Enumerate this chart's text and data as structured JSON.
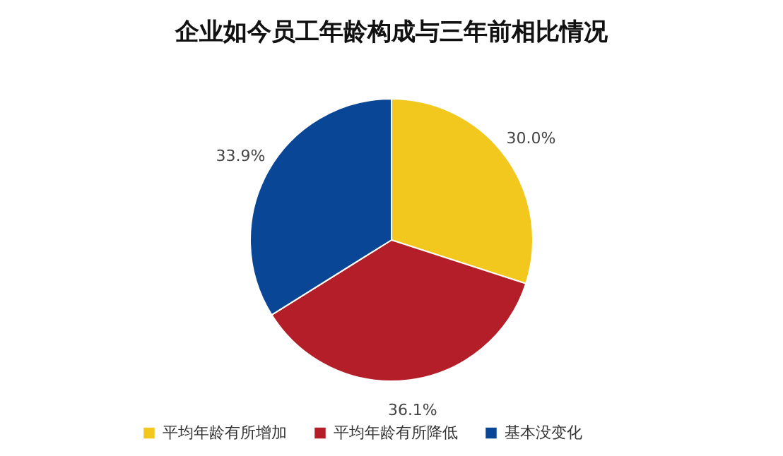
{
  "chart_data": {
    "type": "pie",
    "title": "企业如今员工年龄构成与三年前相比情况",
    "categories": [
      "平均年龄有所增加",
      "平均年龄有所降低",
      "基本没变化"
    ],
    "values": [
      30.0,
      36.1,
      33.9
    ],
    "value_labels": [
      "30.0%",
      "36.1%",
      "33.9%"
    ],
    "colors": [
      "#f2c81e",
      "#b41e28",
      "#0a4696"
    ],
    "legend": "bottom"
  }
}
